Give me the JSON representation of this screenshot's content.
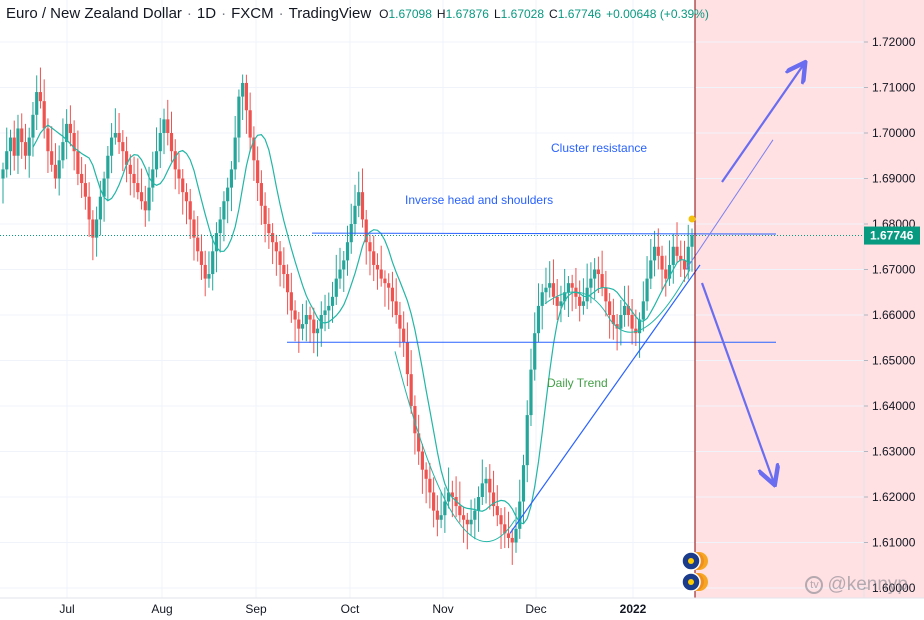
{
  "header": {
    "symbol": "Euro / New Zealand Dollar",
    "interval": "1D",
    "exchange": "FXCM",
    "source": "TradingView",
    "ohlc": [
      {
        "k": "O",
        "v": "1.67098"
      },
      {
        "k": "H",
        "v": "1.67876"
      },
      {
        "k": "L",
        "v": "1.67028"
      },
      {
        "k": "C",
        "v": "1.67746"
      }
    ],
    "change": "+0.00648 (+0.39%)"
  },
  "watermark": "@kennyp",
  "colors": {
    "up": "#26a69a",
    "down": "#ef5350",
    "trendline": "#2962ff",
    "ma": "#22b6a6",
    "annotation": "#2962ff",
    "daily_trend_text": "#43a047",
    "current_price_tag": "#089981",
    "future_zone": "#ffe0e3",
    "cursor_line": "#8b0000",
    "arrow": "#6a6df0"
  },
  "annotations": {
    "cluster_resistance": "Cluster resistance",
    "inverse_hs": "Inverse head and shoulders",
    "daily_trend": "Daily Trend"
  },
  "chart_data": {
    "type": "candlestick",
    "x_labels": [
      "Jul",
      "Aug",
      "Sep",
      "Oct",
      "Nov",
      "Dec",
      "2022"
    ],
    "y_ticks": [
      "1.72000",
      "1.71000",
      "1.70000",
      "1.69000",
      "1.68000",
      "1.67000",
      "1.66000",
      "1.65000",
      "1.64000",
      "1.63000",
      "1.62000",
      "1.61000",
      "1.60000"
    ],
    "ylim": [
      1.6,
      1.72
    ],
    "last_price": "1.67746",
    "series_close": [
      1.692,
      1.696,
      1.699,
      1.695,
      1.701,
      1.698,
      1.695,
      1.699,
      1.704,
      1.709,
      1.707,
      1.701,
      1.696,
      1.693,
      1.69,
      1.694,
      1.698,
      1.702,
      1.7,
      1.696,
      1.691,
      1.689,
      1.686,
      1.681,
      1.677,
      1.681,
      1.686,
      1.69,
      1.695,
      1.699,
      1.7,
      1.698,
      1.696,
      1.693,
      1.691,
      1.689,
      1.687,
      1.685,
      1.683,
      1.688,
      1.692,
      1.696,
      1.7,
      1.703,
      1.7,
      1.696,
      1.692,
      1.69,
      1.687,
      1.685,
      1.681,
      1.677,
      1.674,
      1.671,
      1.668,
      1.669,
      1.674,
      1.678,
      1.681,
      1.685,
      1.688,
      1.692,
      1.699,
      1.708,
      1.711,
      1.705,
      1.699,
      1.694,
      1.689,
      1.684,
      1.68,
      1.678,
      1.676,
      1.674,
      1.671,
      1.669,
      1.665,
      1.661,
      1.659,
      1.657,
      1.658,
      1.66,
      1.659,
      1.656,
      1.657,
      1.66,
      1.661,
      1.662,
      1.664,
      1.668,
      1.67,
      1.672,
      1.676,
      1.68,
      1.684,
      1.687,
      1.681,
      1.676,
      1.674,
      1.671,
      1.67,
      1.668,
      1.667,
      1.666,
      1.663,
      1.66,
      1.657,
      1.654,
      1.647,
      1.64,
      1.634,
      1.63,
      1.626,
      1.624,
      1.621,
      1.617,
      1.615,
      1.616,
      1.619,
      1.621,
      1.62,
      1.618,
      1.616,
      1.615,
      1.614,
      1.615,
      1.617,
      1.62,
      1.623,
      1.624,
      1.621,
      1.618,
      1.616,
      1.614,
      1.612,
      1.611,
      1.61,
      1.613,
      1.619,
      1.627,
      1.638,
      1.648,
      1.656,
      1.662,
      1.665,
      1.666,
      1.667,
      1.664,
      1.662,
      1.663,
      1.665,
      1.667,
      1.666,
      1.664,
      1.662,
      1.663,
      1.666,
      1.668,
      1.67,
      1.669,
      1.666,
      1.663,
      1.66,
      1.658,
      1.657,
      1.66,
      1.662,
      1.66,
      1.657,
      1.656,
      1.659,
      1.663,
      1.668,
      1.672,
      1.675,
      1.673,
      1.67,
      1.668,
      1.671,
      1.675,
      1.673,
      1.672,
      1.67,
      1.675,
      1.6775
    ]
  }
}
